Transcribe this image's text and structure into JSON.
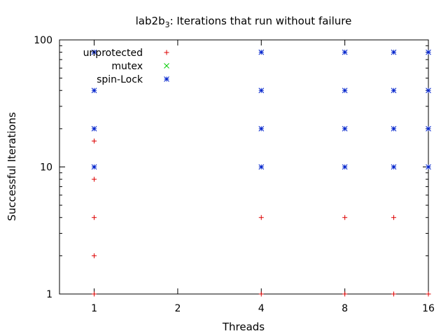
{
  "chart_data": {
    "type": "scatter",
    "title": "lab2b",
    "title_sub": "3",
    "title_rest": ": Iterations that run without failure",
    "xlabel": "Threads",
    "ylabel": "Successful Iterations",
    "xscale": "log2",
    "yscale": "log10",
    "xlim": [
      0.75,
      16
    ],
    "ylim": [
      1,
      100
    ],
    "x_ticks": [
      {
        "value": 1,
        "label": "1"
      },
      {
        "value": 2,
        "label": "2"
      },
      {
        "value": 4,
        "label": "4"
      },
      {
        "value": 8,
        "label": "8"
      },
      {
        "value": 16,
        "label": "16"
      }
    ],
    "y_ticks": [
      {
        "value": 1,
        "label": "1"
      },
      {
        "value": 10,
        "label": "10"
      },
      {
        "value": 100,
        "label": "100"
      }
    ],
    "grid": false,
    "legend_position": "top-left",
    "series": [
      {
        "name": "unprotected",
        "marker": "plus",
        "color": "#dd0000",
        "points": [
          [
            1,
            1
          ],
          [
            1,
            2
          ],
          [
            1,
            4
          ],
          [
            1,
            8
          ],
          [
            1,
            16
          ],
          [
            4,
            1
          ],
          [
            4,
            4
          ],
          [
            8,
            1
          ],
          [
            8,
            4
          ],
          [
            12,
            1
          ],
          [
            12,
            4
          ],
          [
            16,
            1
          ]
        ]
      },
      {
        "name": "mutex",
        "marker": "cross",
        "color": "#00cc00",
        "points": []
      },
      {
        "name": "spin-Lock",
        "marker": "star",
        "color": "#0022cc",
        "points": [
          [
            1,
            10
          ],
          [
            1,
            20
          ],
          [
            1,
            40
          ],
          [
            1,
            80
          ],
          [
            4,
            10
          ],
          [
            4,
            20
          ],
          [
            4,
            40
          ],
          [
            4,
            80
          ],
          [
            8,
            10
          ],
          [
            8,
            20
          ],
          [
            8,
            40
          ],
          [
            8,
            80
          ],
          [
            12,
            10
          ],
          [
            12,
            20
          ],
          [
            12,
            40
          ],
          [
            12,
            80
          ],
          [
            16,
            10
          ],
          [
            16,
            20
          ],
          [
            16,
            40
          ],
          [
            16,
            80
          ]
        ]
      }
    ]
  }
}
